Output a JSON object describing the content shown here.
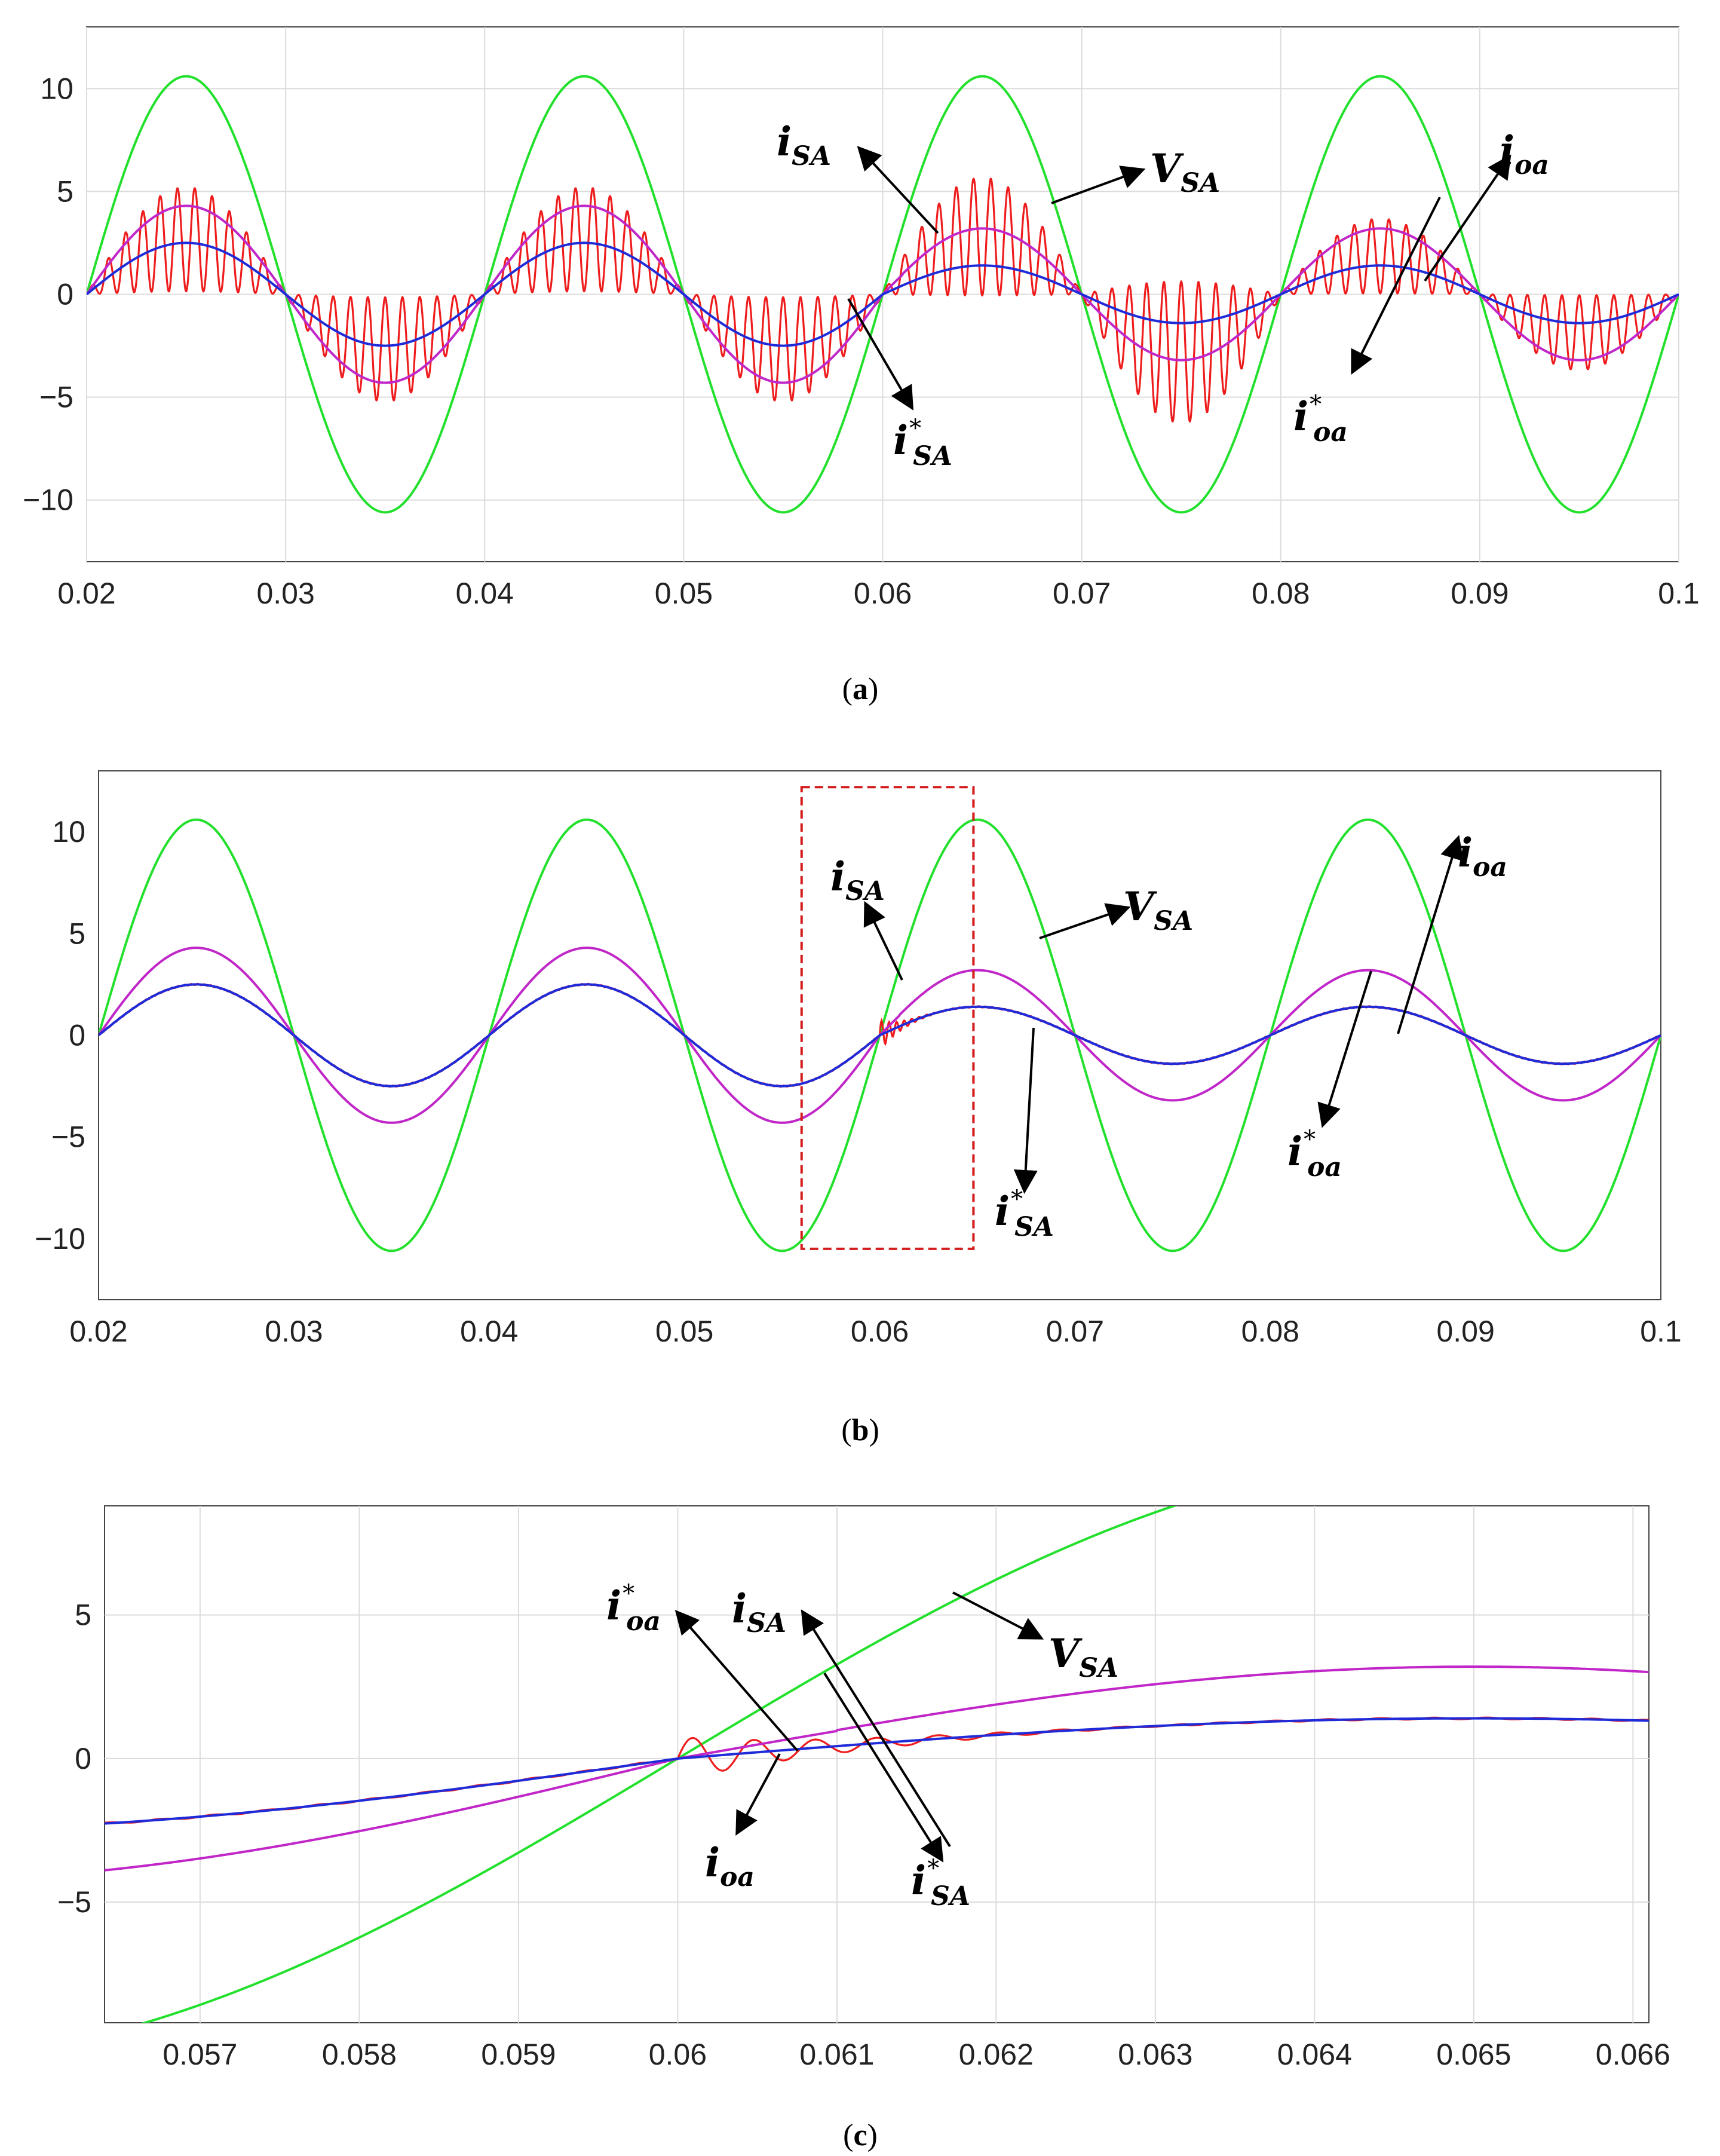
{
  "colors": {
    "v_sa": "#22e02c",
    "i_sa": "#ee1c1c",
    "i_oa": "#c026c8",
    "i_ref": "#1f2ad8",
    "grid": "#dcdcdc",
    "box": "#d41c1c",
    "arrow": "#000000"
  },
  "chart_data": [
    {
      "id": "a",
      "type": "line",
      "caption": {
        "open": "(",
        "letter": "a",
        "close": ")"
      },
      "xlim": [
        0.02,
        0.1
      ],
      "ylim": [
        -13,
        13
      ],
      "xticks": [
        "0.02",
        "0.03",
        "0.04",
        "0.05",
        "0.06",
        "0.07",
        "0.08",
        "0.09",
        "0.1"
      ],
      "yticks": [
        "10",
        "5",
        "0",
        "−5",
        "−10"
      ],
      "grid": true,
      "series": [
        {
          "name": "V_SA",
          "description": "source voltage, 50 Hz sinusoid",
          "amplitude": 10.6,
          "color_key": "v_sa"
        },
        {
          "name": "i_oa",
          "description": "load current",
          "amplitude": [
            4.3,
            4.3,
            3.2,
            3.2
          ],
          "color_key": "i_oa"
        },
        {
          "name": "i_SA*",
          "description": "reference source current",
          "amplitude": [
            2.5,
            2.5,
            1.4,
            1.4
          ],
          "color_key": "i_ref"
        },
        {
          "name": "i_SA",
          "description": "source current with high-frequency ripple",
          "ripple_peak": [
            4.6,
            4.6,
            5.2,
            3.3
          ],
          "color_key": "i_sa"
        }
      ],
      "annotations": [
        {
          "base": "i",
          "sub": "SA",
          "star": false
        },
        {
          "base": "V",
          "sub": "SA",
          "star": false
        },
        {
          "base": "i",
          "sub": "oa",
          "star": false
        },
        {
          "base": "i",
          "sub": "SA",
          "star": true
        },
        {
          "base": "i",
          "sub": "oa",
          "star": true
        }
      ]
    },
    {
      "id": "b",
      "type": "line",
      "caption": {
        "open": "(",
        "letter": "b",
        "close": ")"
      },
      "xlim": [
        0.02,
        0.1
      ],
      "ylim": [
        -13,
        13
      ],
      "xticks": [
        "0.02",
        "0.03",
        "0.04",
        "0.05",
        "0.06",
        "0.07",
        "0.08",
        "0.09",
        "0.1"
      ],
      "yticks": [
        "10",
        "5",
        "0",
        "−5",
        "−10"
      ],
      "grid": false,
      "zoom_box": {
        "x": [
          0.056,
          0.0648
        ],
        "y": [
          -10.5,
          12.2
        ]
      },
      "series": [
        {
          "name": "V_SA",
          "amplitude": 10.6,
          "color_key": "v_sa"
        },
        {
          "name": "i_oa",
          "amplitude": [
            4.3,
            4.3,
            3.2,
            3.2
          ],
          "color_key": "i_oa"
        },
        {
          "name": "i_SA*",
          "amplitude": [
            2.5,
            2.5,
            1.4,
            1.4
          ],
          "color_key": "i_ref"
        },
        {
          "name": "i_SA",
          "description": "tracks reference, short transient near 0.06",
          "color_key": "i_sa"
        }
      ],
      "annotations": [
        {
          "base": "i",
          "sub": "SA",
          "star": false
        },
        {
          "base": "V",
          "sub": "SA",
          "star": false
        },
        {
          "base": "i",
          "sub": "oa",
          "star": false
        },
        {
          "base": "i",
          "sub": "SA",
          "star": true
        },
        {
          "base": "i",
          "sub": "oa",
          "star": true
        }
      ]
    },
    {
      "id": "c",
      "type": "line",
      "caption": {
        "open": "(",
        "letter": "c",
        "close": ")"
      },
      "xlim": [
        0.0564,
        0.0661
      ],
      "ylim": [
        -9.2,
        8.8
      ],
      "xticks": [
        "0.057",
        "0.058",
        "0.059",
        "0.06",
        "0.061",
        "0.062",
        "0.063",
        "0.064",
        "0.065",
        "0.066"
      ],
      "yticks": [
        "5",
        "0",
        "−5"
      ],
      "grid": true,
      "series": [
        {
          "name": "V_SA",
          "color_key": "v_sa"
        },
        {
          "name": "i_oa",
          "color_key": "i_oa"
        },
        {
          "name": "i_SA*",
          "color_key": "i_ref"
        },
        {
          "name": "i_SA",
          "description": "damped oscillation after 0.06 settling on reference",
          "color_key": "i_sa"
        }
      ],
      "annotations": [
        {
          "base": "i",
          "sub": "oa",
          "star": true
        },
        {
          "base": "i",
          "sub": "SA",
          "star": false
        },
        {
          "base": "V",
          "sub": "SA",
          "star": false
        },
        {
          "base": "i",
          "sub": "oa",
          "star": false
        },
        {
          "base": "i",
          "sub": "SA",
          "star": true
        }
      ]
    }
  ]
}
